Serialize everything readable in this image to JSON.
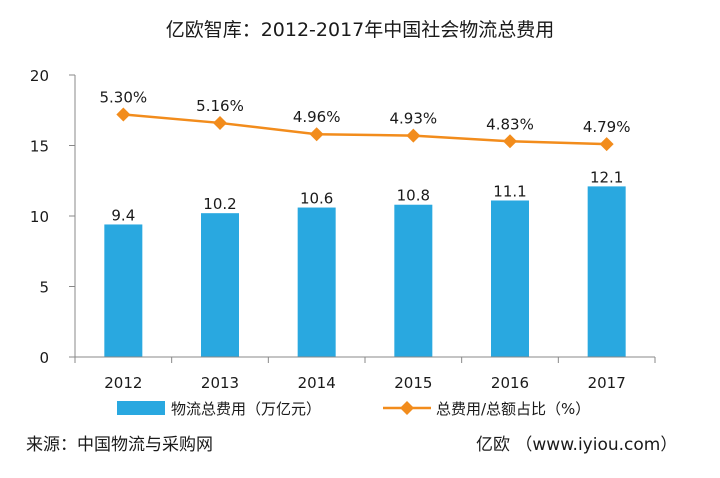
{
  "colors": {
    "bar": "#29a8e0",
    "line": "#f28c1c",
    "axis": "#888888"
  },
  "chart_data": {
    "type": "bar",
    "title": "亿欧智库：2012-2017年中国社会物流总费用",
    "categories": [
      "2012",
      "2013",
      "2014",
      "2015",
      "2016",
      "2017"
    ],
    "ylim": [
      0,
      20
    ],
    "yticks": [
      0,
      5,
      10,
      15,
      20
    ],
    "series": [
      {
        "name": "物流总费用（万亿元）",
        "type": "bar",
        "values": [
          9.4,
          10.2,
          10.6,
          10.8,
          11.1,
          12.1
        ],
        "labels": [
          "9.4",
          "10.2",
          "10.6",
          "10.8",
          "11.1",
          "12.1"
        ]
      },
      {
        "name": "总费用/总额占比（%）",
        "type": "line",
        "values": [
          5.3,
          5.16,
          4.96,
          4.93,
          4.83,
          4.79
        ],
        "labels": [
          "5.30%",
          "5.16%",
          "4.96%",
          "4.93%",
          "4.83%",
          "4.79%"
        ],
        "plotted_on_left_axis_as": [
          17.2,
          16.6,
          15.8,
          15.7,
          15.3,
          15.1
        ]
      }
    ]
  },
  "footer": {
    "source": "来源：中国物流与采购网",
    "credit": "亿欧 （www.iyiou.com）"
  }
}
